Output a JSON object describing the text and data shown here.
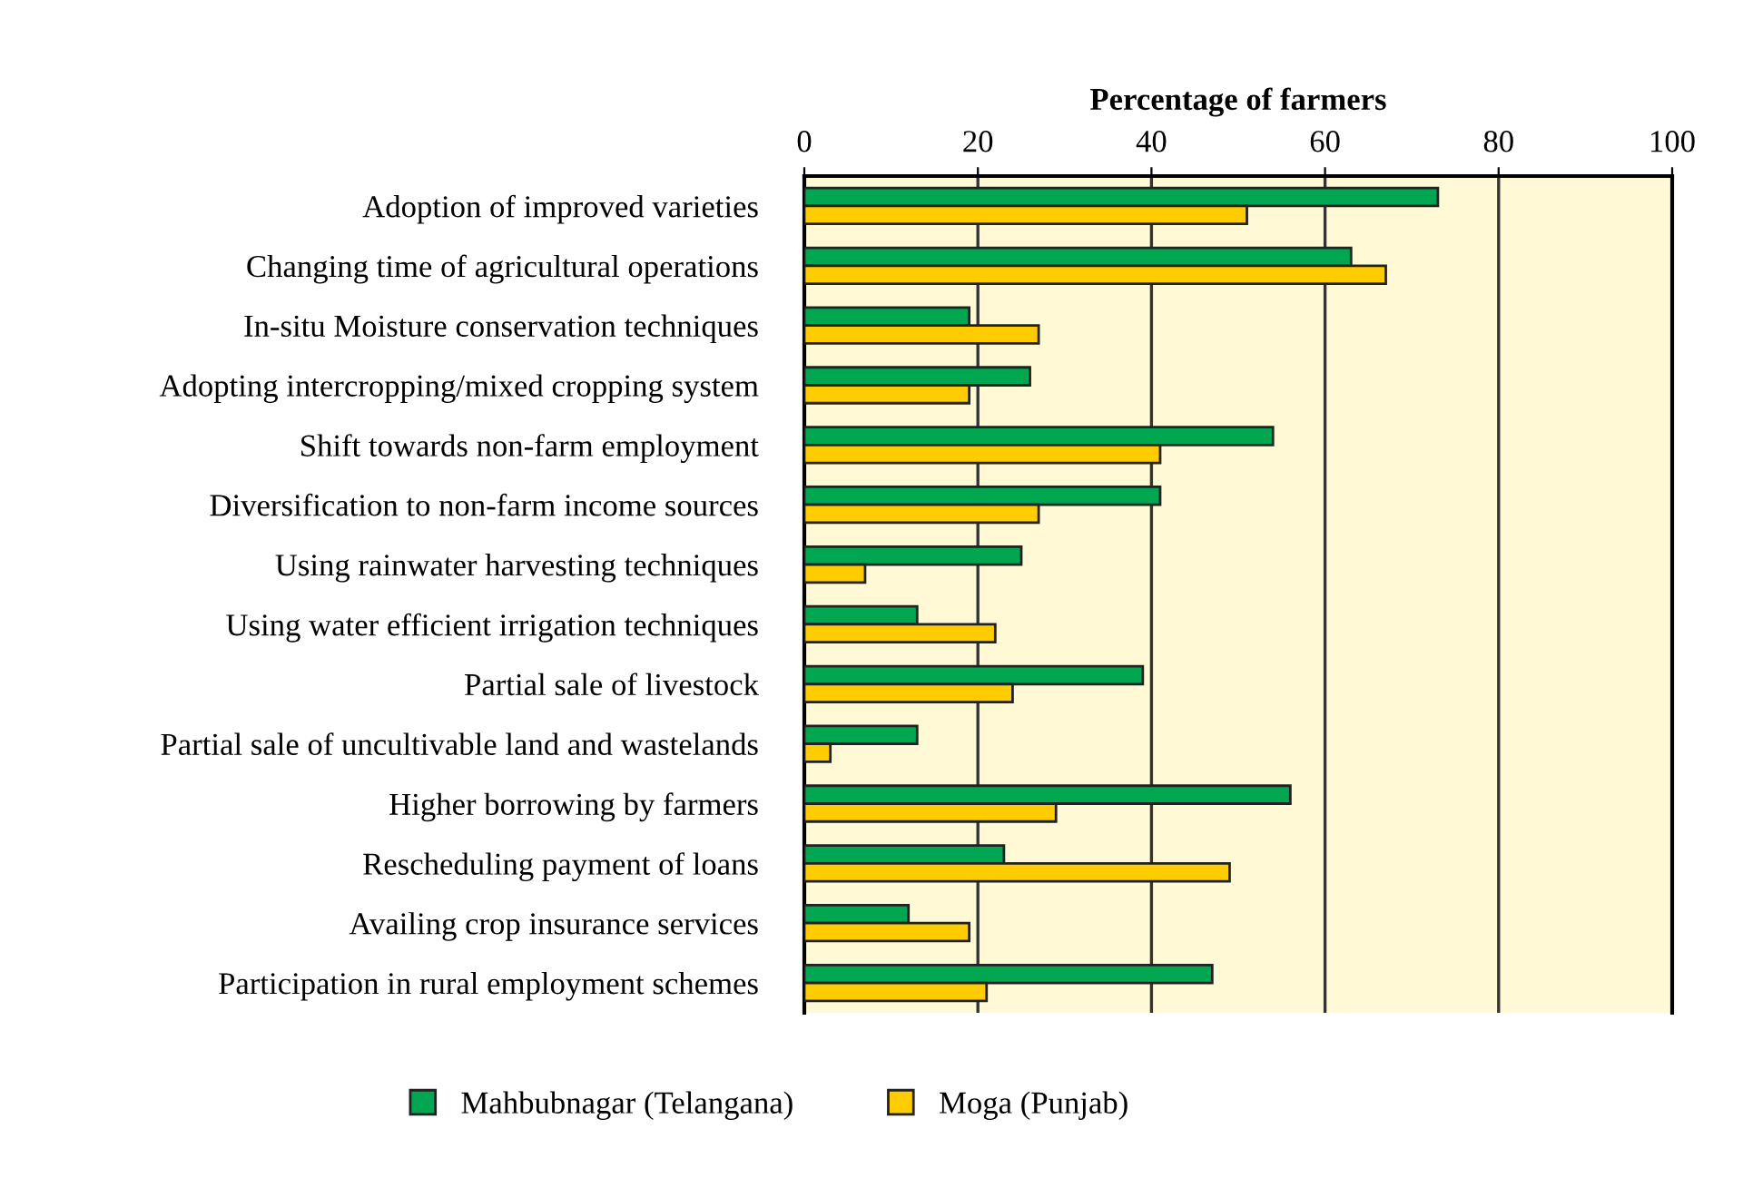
{
  "chart_data": {
    "type": "bar",
    "orientation": "horizontal",
    "xlabel": "Percentage of farmers",
    "categories": [
      "Adoption of improved varieties",
      "Changing time of agricultural operations",
      "In-situ Moisture conservation techniques",
      "Adopting intercropping/mixed cropping system",
      "Shift towards non-farm employment",
      "Diversification to non-farm income sources",
      "Using rainwater harvesting techniques",
      "Using water efficient irrigation techniques",
      "Partial sale of livestock",
      "Partial sale of uncultivable land and wastelands",
      "Higher borrowing by farmers",
      "Rescheduling payment of loans",
      "Availing crop insurance services",
      "Participation in rural employment schemes"
    ],
    "series": [
      {
        "name": "Mahbubnagar (Telangana)",
        "color": "#00a650",
        "values": [
          73,
          63,
          19,
          26,
          54,
          41,
          25,
          13,
          39,
          13,
          56,
          23,
          12,
          47
        ]
      },
      {
        "name": "Moga (Punjab)",
        "color": "#ffcc00",
        "values": [
          51,
          67,
          27,
          19,
          41,
          27,
          7,
          22,
          24,
          3,
          29,
          49,
          19,
          21
        ]
      }
    ],
    "xlim": [
      0,
      100
    ],
    "xticks": [
      0,
      20,
      40,
      60,
      80,
      100
    ],
    "grid": "x",
    "legend": "bottom"
  }
}
